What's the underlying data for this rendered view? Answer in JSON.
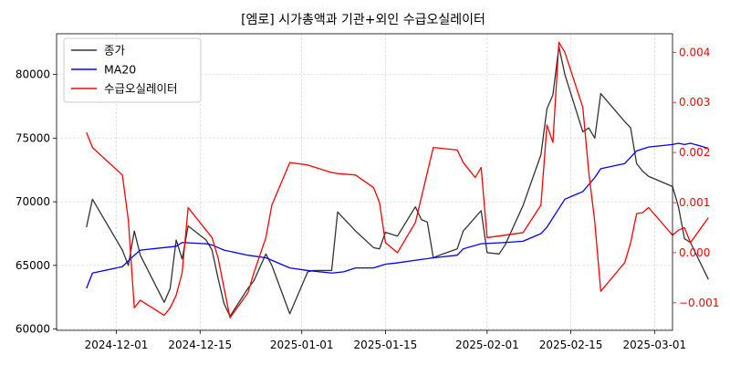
{
  "chart_data": {
    "type": "line",
    "title": "[엠로] 시가총액과 기관+외인 수급오실레이터",
    "xlabel": "",
    "ylabel": "",
    "grid": true,
    "legend_position": "top-left",
    "x_ticks": [
      "2024-12-01",
      "2024-12-15",
      "2025-01-01",
      "2025-01-15",
      "2025-02-01",
      "2025-02-15",
      "2025-03-01"
    ],
    "y_left": {
      "ticks": [
        60000,
        65000,
        70000,
        75000,
        80000
      ],
      "labels": [
        "60000",
        "65000",
        "70000",
        "75000",
        "80000"
      ],
      "range": [
        59900,
        83200
      ]
    },
    "y_right": {
      "ticks": [
        -0.001,
        0.0,
        0.001,
        0.002,
        0.003,
        0.004
      ],
      "labels": [
        "−0.001",
        "0.000",
        "0.001",
        "0.002",
        "0.003",
        "0.004"
      ],
      "range": [
        -0.00155,
        0.00437
      ]
    },
    "series": [
      {
        "name": "종가",
        "axis": "left",
        "color": "#333333",
        "points": [
          [
            "2024-11-26",
            68000
          ],
          [
            "2024-11-27",
            70200
          ],
          [
            "2024-12-02",
            66200
          ],
          [
            "2024-12-03",
            65000
          ],
          [
            "2024-12-04",
            67700
          ],
          [
            "2024-12-05",
            65800
          ],
          [
            "2024-12-09",
            62100
          ],
          [
            "2024-12-10",
            63200
          ],
          [
            "2024-12-11",
            67000
          ],
          [
            "2024-12-12",
            65500
          ],
          [
            "2024-12-13",
            68100
          ],
          [
            "2024-12-16",
            67000
          ],
          [
            "2024-12-17",
            66200
          ],
          [
            "2024-12-18",
            64000
          ],
          [
            "2024-12-19",
            62000
          ],
          [
            "2024-12-20",
            61000
          ],
          [
            "2024-12-23",
            63200
          ],
          [
            "2024-12-24",
            63800
          ],
          [
            "2024-12-26",
            65900
          ],
          [
            "2024-12-27",
            65000
          ],
          [
            "2024-12-30",
            61200
          ],
          [
            "2025-01-02",
            64500
          ],
          [
            "2025-01-03",
            64600
          ],
          [
            "2025-01-06",
            64600
          ],
          [
            "2025-01-07",
            69200
          ],
          [
            "2025-01-10",
            67700
          ],
          [
            "2025-01-13",
            66400
          ],
          [
            "2025-01-14",
            66300
          ],
          [
            "2025-01-15",
            67600
          ],
          [
            "2025-01-17",
            67300
          ],
          [
            "2025-01-20",
            69600
          ],
          [
            "2025-01-21",
            68600
          ],
          [
            "2025-01-22",
            68400
          ],
          [
            "2025-01-23",
            65600
          ],
          [
            "2025-01-24",
            65800
          ],
          [
            "2025-01-27",
            66300
          ],
          [
            "2025-01-28",
            67700
          ],
          [
            "2025-01-31",
            69300
          ],
          [
            "2025-02-01",
            66000
          ],
          [
            "2025-02-03",
            65900
          ],
          [
            "2025-02-04",
            66600
          ],
          [
            "2025-02-07",
            69700
          ],
          [
            "2025-02-10",
            73700
          ],
          [
            "2025-02-11",
            77300
          ],
          [
            "2025-02-12",
            78400
          ],
          [
            "2025-02-13",
            82200
          ],
          [
            "2025-02-14",
            80000
          ],
          [
            "2025-02-17",
            75500
          ],
          [
            "2025-02-18",
            75800
          ],
          [
            "2025-02-19",
            75000
          ],
          [
            "2025-02-20",
            78500
          ],
          [
            "2025-02-24",
            76300
          ],
          [
            "2025-02-25",
            75800
          ],
          [
            "2025-02-26",
            73000
          ],
          [
            "2025-02-27",
            72400
          ],
          [
            "2025-02-28",
            72000
          ],
          [
            "2025-03-04",
            71200
          ],
          [
            "2025-03-05",
            69600
          ],
          [
            "2025-03-06",
            67100
          ],
          [
            "2025-03-07",
            66800
          ],
          [
            "2025-03-10",
            63900
          ]
        ]
      },
      {
        "name": "MA20",
        "axis": "left",
        "color": "#0000ff",
        "points": [
          [
            "2024-11-26",
            63200
          ],
          [
            "2024-11-27",
            64400
          ],
          [
            "2024-12-02",
            64900
          ],
          [
            "2024-12-04",
            65800
          ],
          [
            "2024-12-05",
            66200
          ],
          [
            "2024-12-09",
            66400
          ],
          [
            "2024-12-11",
            66500
          ],
          [
            "2024-12-12",
            66800
          ],
          [
            "2024-12-16",
            66700
          ],
          [
            "2024-12-17",
            66600
          ],
          [
            "2024-12-18",
            66400
          ],
          [
            "2024-12-19",
            66200
          ],
          [
            "2024-12-23",
            65800
          ],
          [
            "2024-12-26",
            65600
          ],
          [
            "2024-12-27",
            65400
          ],
          [
            "2024-12-30",
            64800
          ],
          [
            "2025-01-02",
            64600
          ],
          [
            "2025-01-06",
            64400
          ],
          [
            "2025-01-08",
            64500
          ],
          [
            "2025-01-10",
            64800
          ],
          [
            "2025-01-13",
            64800
          ],
          [
            "2025-01-15",
            65100
          ],
          [
            "2025-01-17",
            65200
          ],
          [
            "2025-01-20",
            65400
          ],
          [
            "2025-01-23",
            65600
          ],
          [
            "2025-01-27",
            65800
          ],
          [
            "2025-01-28",
            66300
          ],
          [
            "2025-01-31",
            66700
          ],
          [
            "2025-02-04",
            66800
          ],
          [
            "2025-02-07",
            66900
          ],
          [
            "2025-02-10",
            67500
          ],
          [
            "2025-02-11",
            68000
          ],
          [
            "2025-02-14",
            70200
          ],
          [
            "2025-02-17",
            70800
          ],
          [
            "2025-02-19",
            71900
          ],
          [
            "2025-02-20",
            72600
          ],
          [
            "2025-02-24",
            73000
          ],
          [
            "2025-02-26",
            74000
          ],
          [
            "2025-02-28",
            74300
          ],
          [
            "2025-03-04",
            74500
          ],
          [
            "2025-03-05",
            74600
          ],
          [
            "2025-03-06",
            74500
          ],
          [
            "2025-03-07",
            74600
          ],
          [
            "2025-03-10",
            74200
          ]
        ]
      },
      {
        "name": "수급오실레이터",
        "axis": "right",
        "color": "#ff0000",
        "points": [
          [
            "2024-11-26",
            0.0024
          ],
          [
            "2024-11-27",
            0.0021
          ],
          [
            "2024-12-02",
            0.00155
          ],
          [
            "2024-12-03",
            0.00065
          ],
          [
            "2024-12-04",
            -0.0011
          ],
          [
            "2024-12-05",
            -0.00095
          ],
          [
            "2024-12-09",
            -0.00125
          ],
          [
            "2024-12-10",
            -0.0011
          ],
          [
            "2024-12-11",
            -0.00085
          ],
          [
            "2024-12-12",
            -0.0004
          ],
          [
            "2024-12-13",
            0.0009
          ],
          [
            "2024-12-16",
            0.00045
          ],
          [
            "2024-12-17",
            0.0003
          ],
          [
            "2024-12-18",
            -0.0001
          ],
          [
            "2024-12-19",
            -0.0007
          ],
          [
            "2024-12-20",
            -0.0013
          ],
          [
            "2024-12-23",
            -0.0008
          ],
          [
            "2024-12-24",
            -0.0004
          ],
          [
            "2024-12-26",
            0.0003
          ],
          [
            "2024-12-27",
            0.00095
          ],
          [
            "2024-12-30",
            0.0018
          ],
          [
            "2025-01-02",
            0.00175
          ],
          [
            "2025-01-06",
            0.0016
          ],
          [
            "2025-01-07",
            0.00158
          ],
          [
            "2025-01-10",
            0.00155
          ],
          [
            "2025-01-13",
            0.0013
          ],
          [
            "2025-01-14",
            0.001
          ],
          [
            "2025-01-15",
            0.0002
          ],
          [
            "2025-01-17",
            0.0
          ],
          [
            "2025-01-20",
            0.0006
          ],
          [
            "2025-01-22",
            0.0016
          ],
          [
            "2025-01-23",
            0.0021
          ],
          [
            "2025-01-27",
            0.00205
          ],
          [
            "2025-01-28",
            0.0018
          ],
          [
            "2025-01-30",
            0.0015
          ],
          [
            "2025-01-31",
            0.0017
          ],
          [
            "2025-02-01",
            0.0003
          ],
          [
            "2025-02-04",
            0.00035
          ],
          [
            "2025-02-07",
            0.0004
          ],
          [
            "2025-02-10",
            0.00095
          ],
          [
            "2025-02-11",
            0.00255
          ],
          [
            "2025-02-12",
            0.0022
          ],
          [
            "2025-02-13",
            0.0042
          ],
          [
            "2025-02-14",
            0.004
          ],
          [
            "2025-02-17",
            0.0029
          ],
          [
            "2025-02-18",
            0.0016
          ],
          [
            "2025-02-19",
            0.00062
          ],
          [
            "2025-02-20",
            -0.00077
          ],
          [
            "2025-02-24",
            -0.0002
          ],
          [
            "2025-02-25",
            0.0002
          ],
          [
            "2025-02-26",
            0.00078
          ],
          [
            "2025-02-27",
            0.0008
          ],
          [
            "2025-02-28",
            0.0009
          ],
          [
            "2025-03-04",
            0.00035
          ],
          [
            "2025-03-05",
            0.00045
          ],
          [
            "2025-03-06",
            0.0005
          ],
          [
            "2025-03-07",
            0.0002
          ],
          [
            "2025-03-10",
            0.0007
          ]
        ]
      }
    ]
  }
}
